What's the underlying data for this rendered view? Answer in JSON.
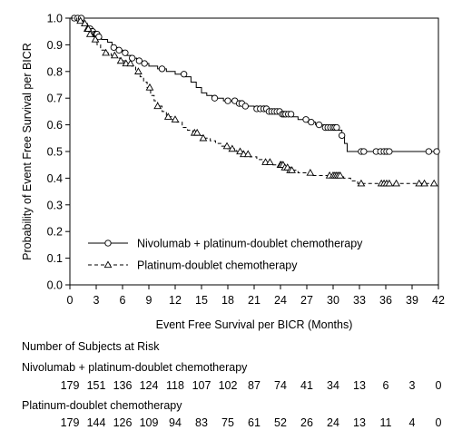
{
  "chart_data": {
    "type": "line",
    "subtype": "kaplan-meier",
    "xlabel": "Event Free Survival per BICR (Months)",
    "ylabel": "Probability of Event Free Survival per BICR",
    "xlim": [
      0,
      42
    ],
    "ylim": [
      0.0,
      1.0
    ],
    "xticks": [
      "0",
      "3",
      "6",
      "9",
      "12",
      "15",
      "18",
      "21",
      "24",
      "27",
      "30",
      "33",
      "36",
      "39",
      "42"
    ],
    "yticks": [
      "0.0",
      "0.1",
      "0.2",
      "0.3",
      "0.4",
      "0.5",
      "0.6",
      "0.7",
      "0.8",
      "0.9",
      "1.0"
    ],
    "legend_position": "bottom-left inside plot",
    "series": [
      {
        "name": "Nivolumab + platinum-doublet chemotherapy",
        "marker": "circle",
        "line_style": "solid",
        "color": "#000000",
        "steps": [
          [
            0,
            1.0
          ],
          [
            0.6,
            1.0
          ],
          [
            1.5,
            0.98
          ],
          [
            2.0,
            0.96
          ],
          [
            2.4,
            0.95
          ],
          [
            2.8,
            0.94
          ],
          [
            3.2,
            0.93
          ],
          [
            3.6,
            0.92
          ],
          [
            4.3,
            0.91
          ],
          [
            4.8,
            0.89
          ],
          [
            5.4,
            0.88
          ],
          [
            6.0,
            0.87
          ],
          [
            6.4,
            0.86
          ],
          [
            7.0,
            0.85
          ],
          [
            7.6,
            0.84
          ],
          [
            8.2,
            0.83
          ],
          [
            9.0,
            0.82
          ],
          [
            10.0,
            0.81
          ],
          [
            11.0,
            0.8
          ],
          [
            12.0,
            0.79
          ],
          [
            13.2,
            0.78
          ],
          [
            13.8,
            0.76
          ],
          [
            14.4,
            0.74
          ],
          [
            15.0,
            0.72
          ],
          [
            15.6,
            0.71
          ],
          [
            16.2,
            0.7
          ],
          [
            17.5,
            0.69
          ],
          [
            19.0,
            0.68
          ],
          [
            20.0,
            0.67
          ],
          [
            21.0,
            0.66
          ],
          [
            22.5,
            0.65
          ],
          [
            24.0,
            0.64
          ],
          [
            25.3,
            0.63
          ],
          [
            26.0,
            0.62
          ],
          [
            27.0,
            0.61
          ],
          [
            28.0,
            0.6
          ],
          [
            29.0,
            0.59
          ],
          [
            30.5,
            0.58
          ],
          [
            31.0,
            0.56
          ],
          [
            31.3,
            0.53
          ],
          [
            31.6,
            0.5
          ],
          [
            42.0,
            0.5
          ]
        ],
        "censor_x": [
          0.5,
          0.9,
          1.3,
          2.3,
          2.5,
          2.6,
          2.8,
          3.0,
          3.1,
          3.3,
          5.0,
          5.6,
          6.3,
          7.1,
          7.9,
          8.5,
          10.5,
          13.0,
          16.5,
          18.0,
          18.8,
          19.3,
          19.6,
          20.0,
          21.3,
          21.7,
          22.1,
          22.4,
          22.7,
          23.0,
          23.3,
          23.6,
          23.9,
          24.2,
          24.4,
          24.6,
          24.9,
          25.2,
          26.9,
          27.5,
          28.4,
          29.1,
          29.4,
          29.7,
          30.0,
          30.2,
          30.4,
          31.0,
          33.2,
          33.5,
          34.9,
          35.4,
          35.8,
          36.1,
          36.4,
          40.9,
          41.8
        ]
      },
      {
        "name": "Platinum-doublet chemotherapy",
        "marker": "triangle",
        "line_style": "dashed",
        "color": "#000000",
        "steps": [
          [
            0,
            1.0
          ],
          [
            0.8,
            0.99
          ],
          [
            1.4,
            0.98
          ],
          [
            1.9,
            0.96
          ],
          [
            2.3,
            0.94
          ],
          [
            2.7,
            0.92
          ],
          [
            3.1,
            0.9
          ],
          [
            3.5,
            0.88
          ],
          [
            4.1,
            0.87
          ],
          [
            4.7,
            0.86
          ],
          [
            5.3,
            0.85
          ],
          [
            5.8,
            0.84
          ],
          [
            6.4,
            0.83
          ],
          [
            7.0,
            0.82
          ],
          [
            7.5,
            0.8
          ],
          [
            8.0,
            0.78
          ],
          [
            8.4,
            0.76
          ],
          [
            8.8,
            0.74
          ],
          [
            9.2,
            0.71
          ],
          [
            9.6,
            0.69
          ],
          [
            10.0,
            0.67
          ],
          [
            10.5,
            0.65
          ],
          [
            11.0,
            0.63
          ],
          [
            11.6,
            0.62
          ],
          [
            12.2,
            0.61
          ],
          [
            12.8,
            0.59
          ],
          [
            13.4,
            0.58
          ],
          [
            14.0,
            0.57
          ],
          [
            14.6,
            0.56
          ],
          [
            15.2,
            0.55
          ],
          [
            16.0,
            0.54
          ],
          [
            16.6,
            0.53
          ],
          [
            17.3,
            0.52
          ],
          [
            18.0,
            0.51
          ],
          [
            19.0,
            0.5
          ],
          [
            19.8,
            0.49
          ],
          [
            20.5,
            0.48
          ],
          [
            21.3,
            0.47
          ],
          [
            22.0,
            0.46
          ],
          [
            23.0,
            0.45
          ],
          [
            24.4,
            0.44
          ],
          [
            25.0,
            0.43
          ],
          [
            26.0,
            0.42
          ],
          [
            27.5,
            0.41
          ],
          [
            31.2,
            0.4
          ],
          [
            32.0,
            0.39
          ],
          [
            32.8,
            0.38
          ],
          [
            42.0,
            0.38
          ]
        ],
        "censor_x": [
          1.2,
          1.7,
          2.0,
          2.1,
          2.3,
          2.9,
          4.1,
          5.1,
          5.8,
          6.4,
          6.9,
          7.8,
          9.1,
          10.0,
          11.2,
          12.0,
          14.2,
          14.5,
          15.2,
          17.9,
          18.5,
          19.4,
          19.8,
          20.3,
          22.3,
          22.8,
          24.0,
          24.1,
          24.3,
          24.5,
          24.8,
          25.1,
          25.3,
          27.4,
          29.6,
          30.0,
          30.2,
          30.4,
          30.6,
          30.8,
          33.2,
          35.5,
          35.8,
          36.1,
          36.4,
          37.2,
          39.8,
          40.4,
          41.5
        ]
      }
    ]
  },
  "risk_table": {
    "title": "Number of Subjects at Risk",
    "rows": [
      {
        "label": "Nivolumab + platinum-doublet chemotherapy",
        "values": [
          "179",
          "151",
          "136",
          "124",
          "118",
          "107",
          "102",
          "87",
          "74",
          "41",
          "34",
          "13",
          "6",
          "3",
          "0"
        ]
      },
      {
        "label": "Platinum-doublet chemotherapy",
        "values": [
          "179",
          "144",
          "126",
          "109",
          "94",
          "83",
          "75",
          "61",
          "52",
          "26",
          "24",
          "13",
          "11",
          "4",
          "0"
        ]
      }
    ]
  }
}
